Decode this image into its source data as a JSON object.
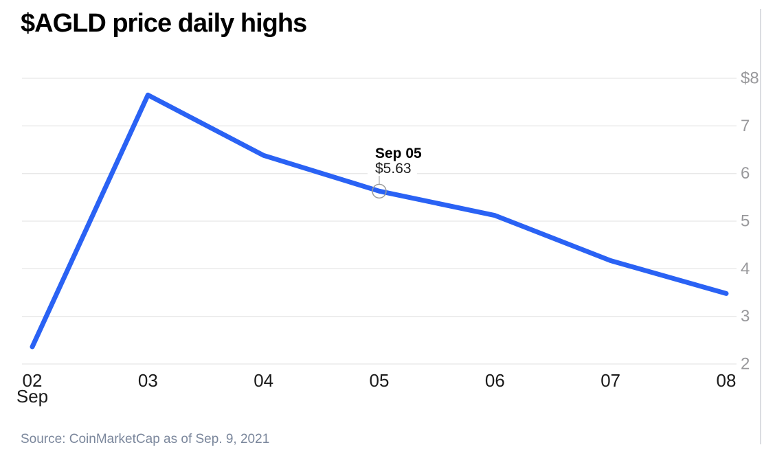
{
  "chart": {
    "title": "$AGLD price daily highs",
    "source": "Source: CoinMarketCap as of Sep. 9, 2021"
  },
  "chart_data": {
    "type": "line",
    "title": "$AGLD price daily highs",
    "categories": [
      "02",
      "03",
      "04",
      "05",
      "06",
      "07",
      "08"
    ],
    "x_axis_month_label": "Sep",
    "values": [
      2.36,
      7.65,
      6.38,
      5.63,
      5.12,
      4.17,
      3.48
    ],
    "ylim": [
      2,
      8
    ],
    "y_ticks": [
      8,
      7,
      6,
      5,
      4,
      3,
      2
    ],
    "y_tick_labels": [
      "$8",
      "7",
      "6",
      "5",
      "4",
      "3",
      "2"
    ],
    "grid": "horizontal",
    "legend_position": "none",
    "annotation": {
      "category": "05",
      "label": "Sep 05",
      "value": 5.63,
      "value_label": "$5.63"
    },
    "source": "Source: CoinMarketCap as of Sep. 9, 2021"
  },
  "colors": {
    "line": "#2a62f4",
    "grid": "#e8e8e8",
    "y_label": "#98989b",
    "x_label": "#1b1b1b",
    "tooltip_title": "#000000",
    "tooltip_value": "#1b1b1b",
    "marker": "#9b9b9b",
    "title": "#000000",
    "source": "#7b879c",
    "right_border": "#dbdde2"
  }
}
